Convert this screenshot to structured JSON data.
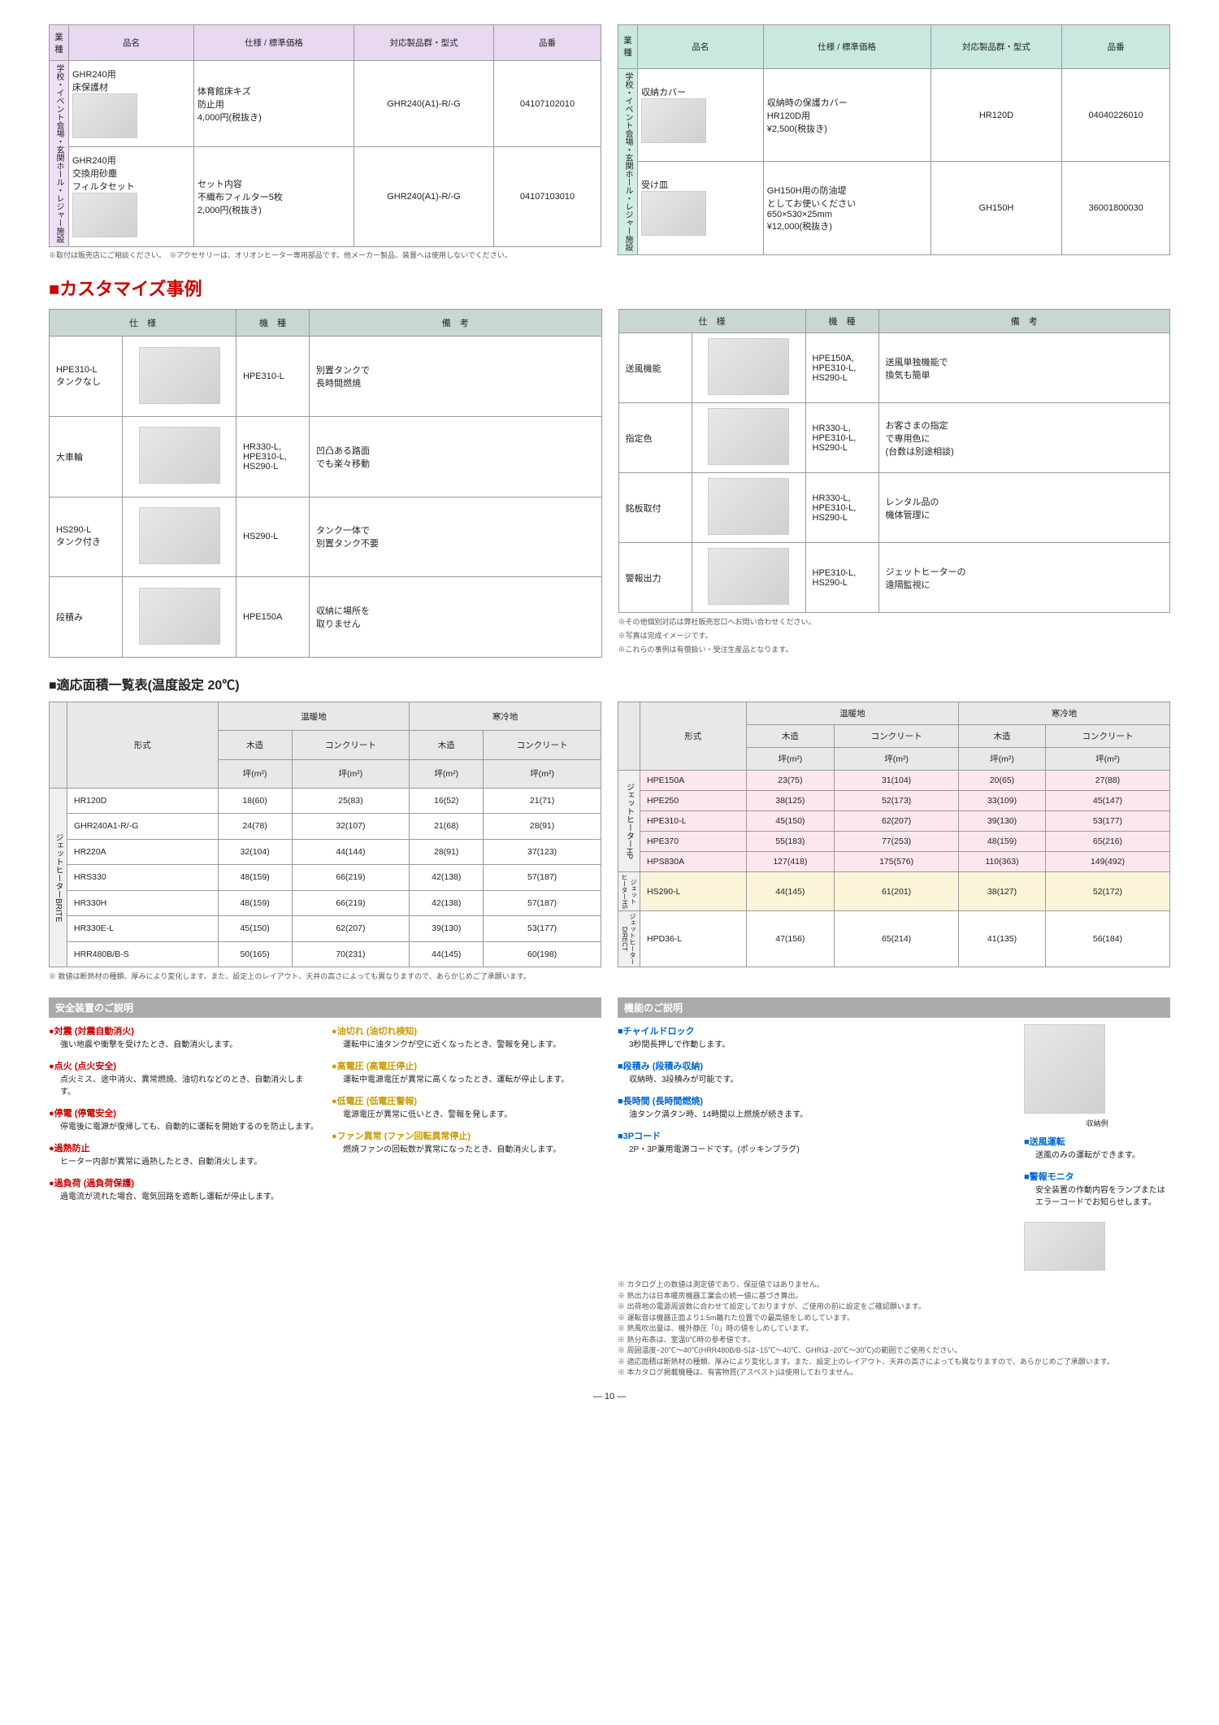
{
  "topTables": {
    "headers": [
      "業種",
      "品名",
      "仕様 / 標準価格",
      "対応製品群・型式",
      "品番"
    ],
    "leftVHeader": "学校・イベント会場・玄関ホール・レジャー施設",
    "left": [
      {
        "name": "GHR240用\n床保護材",
        "spec": "体育館床キズ\n防止用\n4,000円(税抜き)",
        "model": "GHR240(A1)-R/-G",
        "num": "04107102010"
      },
      {
        "name": "GHR240用\n交換用砂塵\nフィルタセット",
        "spec": "セット内容\n不織布フィルター5枚\n2,000円(税抜き)",
        "model": "GHR240(A1)-R/-G",
        "num": "04107103010"
      }
    ],
    "right": [
      {
        "name": "収納カバー",
        "spec": "収納時の保護カバー\nHR120D用\n¥2,500(税抜き)",
        "model": "HR120D",
        "num": "04040226010"
      },
      {
        "name": "受け皿",
        "spec": "GH150H用の防油堤\nとしてお使いください\n650×530×25mm\n¥12,000(税抜き)",
        "model": "GH150H",
        "num": "36001800030"
      }
    ],
    "note": "※取付は販売店にご相談ください。　※アクセサリーは、オリオンヒーター専用部品です。他メーカー製品、装置へは使用しないでください。"
  },
  "customTitle": "カスタマイズ事例",
  "customHeaders": [
    "仕　様",
    "機　種",
    "備　考"
  ],
  "customLeft": [
    {
      "spec": "HPE310-L\nタンクなし",
      "model": "HPE310-L",
      "note": "別置タンクで\n長時間燃焼"
    },
    {
      "spec": "大車輪",
      "model": "HR330-L,\nHPE310-L,\nHS290-L",
      "note": "凹凸ある路面\nでも楽々移動"
    },
    {
      "spec": "HS290-L\nタンク付き",
      "model": "HS290-L",
      "note": "タンク一体で\n別置タンク不要"
    },
    {
      "spec": "段積み",
      "model": "HPE150A",
      "note": "収納に場所を\n取りません"
    }
  ],
  "customRight": [
    {
      "spec": "送風機能",
      "model": "HPE150A,\nHPE310-L,\nHS290-L",
      "note": "送風単独機能で\n換気も簡単"
    },
    {
      "spec": "指定色",
      "model": "HR330-L,\nHPE310-L,\nHS290-L",
      "note": "お客さまの指定\nで専用色に\n(台数は別途相談)"
    },
    {
      "spec": "銘板取付",
      "model": "HR330-L,\nHPE310-L,\nHS290-L",
      "note": "レンタル品の\n機体管理に"
    },
    {
      "spec": "警報出力",
      "model": "HPE310-L,\nHS290-L",
      "note": "ジェットヒーターの\n遠隔監視に"
    }
  ],
  "customNotes": [
    "※その他個別対応は弊社販売窓口へお問い合わせください。",
    "※写真は完成イメージです。",
    "※これらの事例は有償扱い・受注生産品となります。"
  ],
  "areaTitle": "■適応面積一覧表(温度設定 20℃)",
  "areaHeaders": {
    "top1": "温暖地",
    "top2": "寒冷地",
    "sub": [
      "形式",
      "木造",
      "コンクリート",
      "木造",
      "コンクリート"
    ],
    "unit": "坪(m²)"
  },
  "areaLeftVH": "ジェットヒーターBRITE",
  "areaLeft": [
    {
      "m": "HR120D",
      "v": [
        "18(60)",
        "25(83)",
        "16(52)",
        "21(71)"
      ]
    },
    {
      "m": "GHR240A1-R/-G",
      "v": [
        "24(78)",
        "32(107)",
        "21(68)",
        "28(91)"
      ]
    },
    {
      "m": "HR220A",
      "v": [
        "32(104)",
        "44(144)",
        "28(91)",
        "37(123)"
      ]
    },
    {
      "m": "HRS330",
      "v": [
        "48(159)",
        "66(219)",
        "42(138)",
        "57(187)"
      ]
    },
    {
      "m": "HR330H",
      "v": [
        "48(159)",
        "66(219)",
        "42(138)",
        "57(187)"
      ]
    },
    {
      "m": "HR330E-L",
      "v": [
        "45(150)",
        "62(207)",
        "39(130)",
        "53(177)"
      ]
    },
    {
      "m": "HRR480B/B-S",
      "v": [
        "50(165)",
        "70(231)",
        "44(145)",
        "60(198)"
      ]
    }
  ],
  "areaRightGroups": [
    {
      "vh": "ジェットヒーターHP",
      "cls": "pink",
      "rows": [
        {
          "m": "HPE150A",
          "v": [
            "23(75)",
            "31(104)",
            "20(65)",
            "27(88)"
          ]
        },
        {
          "m": "HPE250",
          "v": [
            "38(125)",
            "52(173)",
            "33(109)",
            "45(147)"
          ]
        },
        {
          "m": "HPE310-L",
          "v": [
            "45(150)",
            "62(207)",
            "39(130)",
            "53(177)"
          ]
        },
        {
          "m": "HPE370",
          "v": [
            "55(183)",
            "77(253)",
            "48(159)",
            "65(216)"
          ]
        },
        {
          "m": "HPS830A",
          "v": [
            "127(418)",
            "175(576)",
            "110(363)",
            "149(492)"
          ]
        }
      ]
    },
    {
      "vh": "ジェット\nヒーターHS",
      "cls": "ylw",
      "rows": [
        {
          "m": "HS290-L",
          "v": [
            "44(145)",
            "61(201)",
            "38(127)",
            "52(172)"
          ]
        }
      ]
    },
    {
      "vh": "ジェットヒーター\nDIRECT",
      "cls": "",
      "rows": [
        {
          "m": "HPD36-L",
          "v": [
            "47(156)",
            "65(214)",
            "41(135)",
            "56(184)"
          ]
        }
      ]
    }
  ],
  "areaNote": "※ 数値は断熱材の種類、厚みにより変化します。また、設定上のレイアウト、天井の高さによっても異なりますので、あらかじめご了承願います。",
  "safety": {
    "title": "安全装置のご説明",
    "col1": [
      {
        "h": "●対震 (対震自動消火)",
        "t": "強い地震や衝撃を受けたとき、自動消火します。"
      },
      {
        "h": "●点火 (点火安全)",
        "t": "点火ミス、途中消火、異常燃焼、油切れなどのとき、自動消火します。"
      },
      {
        "h": "●停電 (停電安全)",
        "t": "停電後に電源が復帰しても、自動的に運転を開始するのを防止します。"
      },
      {
        "h": "●過熱防止",
        "t": "ヒーター内部が異常に過熱したとき、自動消火します。"
      },
      {
        "h": "●過負荷 (過負荷保護)",
        "t": "過電流が流れた場合、電気回路を遮断し運転が停止します。"
      }
    ],
    "col2": [
      {
        "h": "●油切れ (油切れ検知)",
        "t": "運転中に油タンクが空に近くなったとき、警報を発します。"
      },
      {
        "h": "●高電圧 (高電圧停止)",
        "t": "運転中電源電圧が異常に高くなったとき、運転が停止します。"
      },
      {
        "h": "●低電圧 (低電圧警報)",
        "t": "電源電圧が異常に低いとき、警報を発します。"
      },
      {
        "h": "●ファン異常 (ファン回転異常停止)",
        "t": "燃焼ファンの回転数が異常になったとき、自動消火します。"
      }
    ]
  },
  "func": {
    "title": "機能のご説明",
    "items": [
      {
        "h": "■チャイルドロック",
        "t": "3秒間長押しで作動します。"
      },
      {
        "h": "■段積み (段積み収納)",
        "t": "収納時、3段積みが可能です。"
      },
      {
        "h": "■長時間 (長時間燃焼)",
        "t": "油タンク満タン時、14時間以上燃焼が続きます。"
      },
      {
        "h": "■3Pコード",
        "t": "2P・3P兼用電源コードです。(ポッキンプラグ)"
      }
    ],
    "rightItems": [
      {
        "h": "■送風運転",
        "t": "送風のみの運転ができます。"
      },
      {
        "h": "■警報モニタ",
        "t": "安全装置の作動内容をランプまたはエラーコードでお知らせします。"
      }
    ],
    "imgLabel": "収納例",
    "notes": [
      "※ カタログ上の数値は測定値であり、保証値ではありません。",
      "※ 熱出力は日本暖房機器工業会の統一値に基づき算出。",
      "※ 出荷地の電源周波数に合わせて設定しておりますが、ご使用の前に設定をご確認願います。",
      "※ 運転音は機器正面より1.5m離れた位置での最高値をしめしています。",
      "※ 熱風吹出量は、機外静圧「0」時の値をしめしています。",
      "※ 熱分布表は、室温0℃時の参考値です。",
      "※ 周囲温度−20℃～40℃(HRR480B/B-Sは−15℃～40℃、GHRは−20℃～30℃)の範囲でご使用ください。",
      "※ 適応面積は断熱材の種類、厚みにより変化します。また、設定上のレイアウト、天井の高さによっても異なりますので、あらかじめご了承願います。",
      "※ 本カタログ掲載機種は、有害物質(アスベスト)は使用しておりません。"
    ]
  },
  "pageNum": "— 10 —"
}
